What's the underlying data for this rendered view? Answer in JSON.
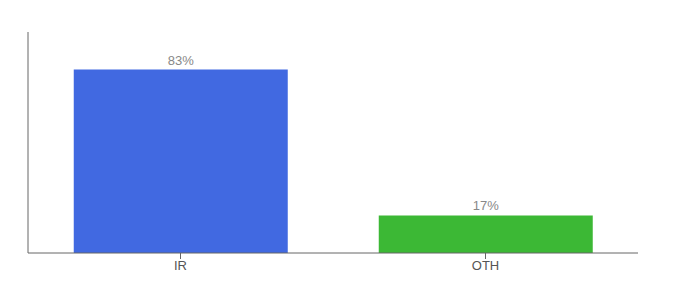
{
  "chart_data": {
    "type": "bar",
    "categories": [
      "IR",
      "OTH"
    ],
    "values": [
      83,
      17
    ],
    "value_labels": [
      "83%",
      "17%"
    ],
    "colors": [
      "#4169E1",
      "#3CB835"
    ],
    "ylim": [
      0,
      100
    ],
    "yticks": [],
    "grid": false,
    "data_labels": true,
    "tick_labels": "x"
  }
}
